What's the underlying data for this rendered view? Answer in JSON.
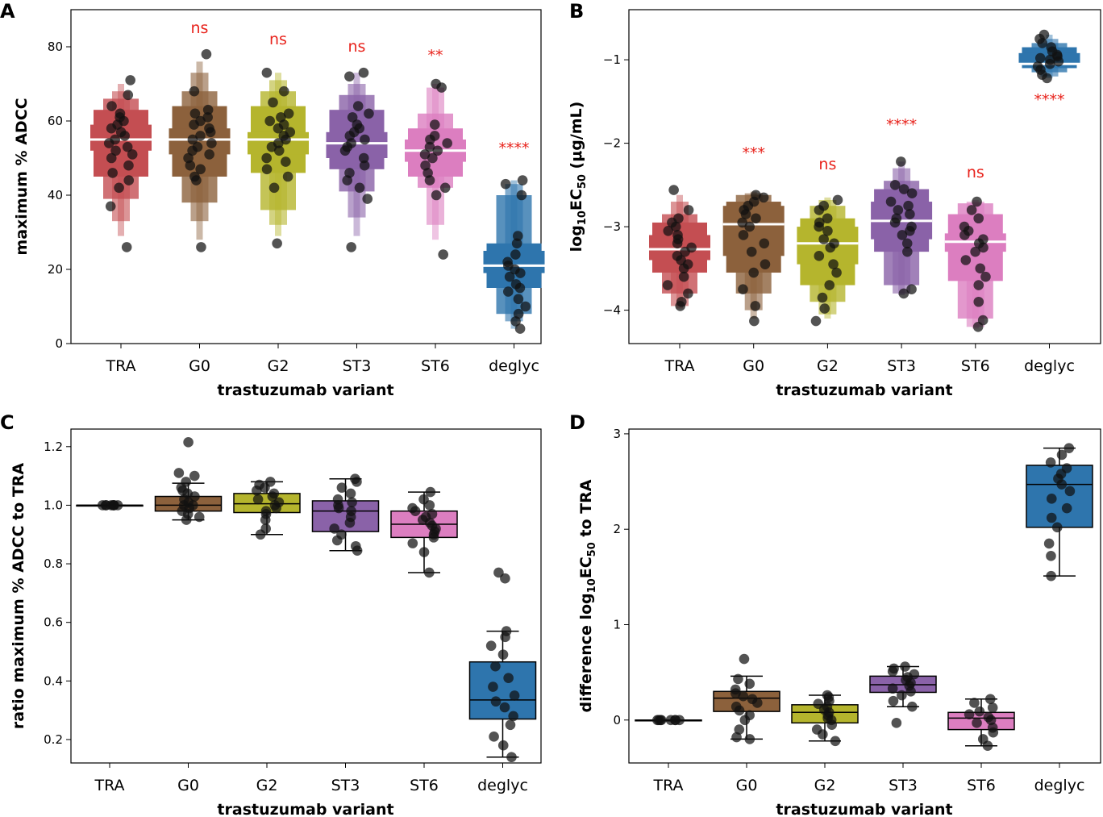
{
  "chart_data": [
    {
      "panel": "A",
      "type": "boxen",
      "xlabel": "trastuzumab variant",
      "ylabel": "maximum % ADCC",
      "ylim": [
        0,
        90
      ],
      "yticks": [
        "0",
        "20",
        "40",
        "60",
        "80"
      ],
      "categories": [
        "TRA",
        "G0",
        "G2",
        "ST3",
        "ST6",
        "deglyc"
      ],
      "significance": [
        "",
        "ns",
        "ns",
        "ns",
        "**",
        "****"
      ],
      "colors": [
        "#c44e52",
        "#8c613c",
        "#b5b52d",
        "#8a62a8",
        "#dc7ec0",
        "#2e75ad"
      ],
      "series": [
        {
          "name": "TRA",
          "median": 55,
          "q1": 52,
          "q3": 59,
          "e1": [
            45,
            63
          ],
          "e2": [
            39,
            66
          ],
          "e3": [
            33,
            68
          ],
          "e4": [
            29,
            70
          ],
          "points": [
            26,
            37,
            42,
            44,
            46,
            48,
            50,
            51,
            52,
            53,
            54,
            55,
            56,
            57,
            58,
            59,
            60,
            61,
            62,
            64,
            67,
            71
          ]
        },
        {
          "name": "G0",
          "median": 55,
          "q1": 51,
          "q3": 58,
          "e1": [
            45,
            64
          ],
          "e2": [
            38,
            68
          ],
          "e3": [
            33,
            73
          ],
          "e4": [
            28,
            76
          ],
          "points": [
            26,
            44,
            45,
            47,
            48,
            50,
            51,
            52,
            53,
            54,
            55,
            56,
            57,
            58,
            59,
            60,
            61,
            62,
            63,
            68,
            78
          ]
        },
        {
          "name": "G2",
          "median": 55,
          "q1": 51,
          "q3": 57,
          "e1": [
            46,
            64
          ],
          "e2": [
            36,
            68
          ],
          "e3": [
            32,
            71
          ],
          "e4": [
            29,
            73
          ],
          "points": [
            27,
            42,
            45,
            47,
            49,
            50,
            52,
            53,
            54,
            55,
            56,
            57,
            58,
            59,
            60,
            61,
            62,
            65,
            68,
            73
          ]
        },
        {
          "name": "ST3",
          "median": 54,
          "q1": 50,
          "q3": 57,
          "e1": [
            47,
            63
          ],
          "e2": [
            41,
            67
          ],
          "e3": [
            34,
            70
          ],
          "e4": [
            29,
            73
          ],
          "points": [
            26,
            39,
            42,
            44,
            46,
            48,
            50,
            52,
            53,
            54,
            55,
            56,
            57,
            58,
            59,
            61,
            62,
            64,
            72,
            73
          ]
        },
        {
          "name": "ST6",
          "median": 52,
          "q1": 49,
          "q3": 55,
          "e1": [
            45,
            58
          ],
          "e2": [
            42,
            62
          ],
          "e3": [
            32,
            69
          ],
          "e4": [
            28,
            70
          ],
          "points": [
            24,
            40,
            42,
            44,
            46,
            48,
            50,
            51,
            52,
            53,
            54,
            55,
            56,
            59,
            69,
            70
          ]
        },
        {
          "name": "deglyc",
          "median": 21,
          "q1": 19,
          "q3": 25,
          "e1": [
            15,
            27
          ],
          "e2": [
            8,
            40
          ],
          "e3": [
            6,
            43
          ],
          "e4": [
            4,
            44
          ],
          "points": [
            4,
            6,
            8,
            10,
            12,
            14,
            15,
            16,
            18,
            19,
            20,
            21,
            22,
            24,
            27,
            29,
            40,
            43,
            44
          ]
        }
      ]
    },
    {
      "panel": "B",
      "type": "boxen",
      "xlabel": "trastuzumab variant",
      "ylabel_main": "log",
      "ylabel_sub": "10",
      "ylabel_mid": "EC",
      "ylabel_sub2": "50",
      "ylabel_tail": " (μg/mL)",
      "ylim": [
        -4.4,
        -0.4
      ],
      "yticks": [
        "−4",
        "−3",
        "−2",
        "−1"
      ],
      "categories": [
        "TRA",
        "G0",
        "G2",
        "ST3",
        "ST6",
        "deglyc"
      ],
      "significance": [
        "",
        "***",
        "ns",
        "****",
        "ns",
        "****"
      ],
      "colors": [
        "#c44e52",
        "#8c613c",
        "#b5b52d",
        "#8a62a8",
        "#dc7ec0",
        "#2e75ad"
      ],
      "series": [
        {
          "name": "TRA",
          "median": -3.27,
          "q1": -3.4,
          "q3": -3.1,
          "e1": [
            -3.55,
            -2.95
          ],
          "e2": [
            -3.8,
            -2.85
          ],
          "e3": [
            -3.95,
            -2.7
          ],
          "e4": [
            -3.98,
            -2.62
          ],
          "points": [
            -3.95,
            -3.9,
            -3.8,
            -3.7,
            -3.6,
            -3.5,
            -3.45,
            -3.4,
            -3.35,
            -3.3,
            -3.25,
            -3.2,
            -3.15,
            -3.1,
            -3.05,
            -3.0,
            -2.95,
            -2.9,
            -2.8,
            -2.56
          ]
        },
        {
          "name": "G0",
          "median": -2.97,
          "q1": -3.35,
          "q3": -2.75,
          "e1": [
            -3.55,
            -2.7
          ],
          "e2": [
            -3.8,
            -2.62
          ],
          "e3": [
            -4.0,
            -2.6
          ],
          "e4": [
            -4.1,
            -2.58
          ],
          "points": [
            -4.13,
            -3.95,
            -3.75,
            -3.55,
            -3.45,
            -3.3,
            -3.2,
            -3.1,
            -3.0,
            -2.95,
            -2.9,
            -2.85,
            -2.8,
            -2.75,
            -2.7,
            -2.65,
            -2.62
          ]
        },
        {
          "name": "G2",
          "median": -3.2,
          "q1": -3.45,
          "q3": -3.0,
          "e1": [
            -3.7,
            -2.9
          ],
          "e2": [
            -3.9,
            -2.75
          ],
          "e3": [
            -4.05,
            -2.68
          ],
          "e4": [
            -4.1,
            -2.65
          ],
          "points": [
            -4.13,
            -3.98,
            -3.85,
            -3.7,
            -3.55,
            -3.45,
            -3.35,
            -3.25,
            -3.2,
            -3.15,
            -3.05,
            -3.0,
            -2.95,
            -2.9,
            -2.8,
            -2.75,
            -2.68
          ]
        },
        {
          "name": "ST3",
          "median": -2.93,
          "q1": -3.15,
          "q3": -2.7,
          "e1": [
            -3.3,
            -2.55
          ],
          "e2": [
            -3.7,
            -2.45
          ],
          "e3": [
            -3.8,
            -2.3
          ],
          "e4": [
            -3.82,
            -2.22
          ],
          "points": [
            -3.8,
            -3.75,
            -3.3,
            -3.2,
            -3.1,
            -3.05,
            -3.0,
            -2.95,
            -2.9,
            -2.85,
            -2.8,
            -2.75,
            -2.7,
            -2.6,
            -2.55,
            -2.5,
            -2.22
          ]
        },
        {
          "name": "ST6",
          "median": -3.18,
          "q1": -3.3,
          "q3": -3.08,
          "e1": [
            -3.65,
            -2.85
          ],
          "e2": [
            -4.1,
            -2.72
          ],
          "e3": [
            -4.2,
            -2.7
          ],
          "e4": [
            -4.22,
            -2.68
          ],
          "points": [
            -4.2,
            -4.12,
            -3.9,
            -3.7,
            -3.6,
            -3.5,
            -3.4,
            -3.3,
            -3.25,
            -3.2,
            -3.15,
            -3.1,
            -3.05,
            -3.0,
            -2.9,
            -2.8,
            -2.7
          ]
        },
        {
          "name": "deglyc",
          "median": -1.05,
          "q1": -1.06,
          "q3": -0.92,
          "e1": [
            -1.1,
            -0.85
          ],
          "e2": [
            -1.15,
            -0.8
          ],
          "e3": [
            -1.2,
            -0.75
          ],
          "e4": [
            -1.22,
            -0.7
          ],
          "points": [
            -1.22,
            -1.18,
            -1.12,
            -1.08,
            -1.05,
            -1.02,
            -1.0,
            -0.98,
            -0.96,
            -0.94,
            -0.9,
            -0.85,
            -0.8,
            -0.75,
            -0.7
          ]
        }
      ]
    },
    {
      "panel": "C",
      "type": "box",
      "xlabel": "trastuzumab variant",
      "ylabel": "ratio maximum % ADCC to TRA",
      "ylim": [
        0.12,
        1.26
      ],
      "yticks": [
        "0.2",
        "0.4",
        "0.6",
        "0.8",
        "1.0",
        "1.2"
      ],
      "categories": [
        "TRA",
        "G0",
        "G2",
        "ST3",
        "ST6",
        "deglyc"
      ],
      "colors": [
        "#c44e52",
        "#8c613c",
        "#b5b52d",
        "#8a62a8",
        "#dc7ec0",
        "#2e75ad"
      ],
      "series": [
        {
          "name": "TRA",
          "min": 1.0,
          "q1": 1.0,
          "median": 1.0,
          "q3": 1.0,
          "max": 1.0,
          "points": [
            1.0,
            1.0,
            1.0,
            1.0,
            1.0,
            1.0,
            1.0,
            1.0
          ]
        },
        {
          "name": "G0",
          "min": 0.95,
          "q1": 0.98,
          "median": 1.0,
          "q3": 1.03,
          "max": 1.075,
          "points": [
            0.95,
            0.96,
            0.97,
            0.98,
            0.99,
            1.0,
            1.0,
            1.01,
            1.02,
            1.03,
            1.04,
            1.05,
            1.06,
            1.08,
            1.1,
            1.11,
            1.215
          ]
        },
        {
          "name": "G2",
          "min": 0.9,
          "q1": 0.975,
          "median": 1.005,
          "q3": 1.04,
          "max": 1.08,
          "points": [
            0.9,
            0.92,
            0.95,
            0.97,
            0.98,
            0.99,
            1.0,
            1.01,
            1.02,
            1.03,
            1.04,
            1.05,
            1.06,
            1.07,
            1.08
          ]
        },
        {
          "name": "ST3",
          "min": 0.845,
          "q1": 0.91,
          "median": 0.98,
          "q3": 1.015,
          "max": 1.09,
          "points": [
            0.845,
            0.86,
            0.88,
            0.9,
            0.92,
            0.94,
            0.96,
            0.98,
            0.99,
            1.0,
            1.01,
            1.02,
            1.04,
            1.06,
            1.08,
            1.09
          ]
        },
        {
          "name": "ST6",
          "min": 0.77,
          "q1": 0.89,
          "median": 0.935,
          "q3": 0.98,
          "max": 1.045,
          "points": [
            0.77,
            0.84,
            0.87,
            0.89,
            0.9,
            0.91,
            0.92,
            0.93,
            0.94,
            0.95,
            0.96,
            0.97,
            0.98,
            0.99,
            1.0,
            1.02,
            1.045
          ]
        },
        {
          "name": "deglyc",
          "min": 0.14,
          "q1": 0.27,
          "median": 0.335,
          "q3": 0.465,
          "max": 0.57,
          "points": [
            0.14,
            0.18,
            0.21,
            0.25,
            0.28,
            0.31,
            0.33,
            0.35,
            0.38,
            0.41,
            0.45,
            0.49,
            0.52,
            0.55,
            0.57,
            0.75,
            0.77
          ]
        }
      ]
    },
    {
      "panel": "D",
      "type": "box",
      "xlabel": "trastuzumab variant",
      "ylabel_main": "difference log",
      "ylabel_sub": "10",
      "ylabel_mid": "EC",
      "ylabel_sub2": "50",
      "ylabel_tail": " to TRA",
      "ylim": [
        -0.45,
        3.05
      ],
      "yticks": [
        "0",
        "1",
        "2",
        "3"
      ],
      "categories": [
        "TRA",
        "G0",
        "G2",
        "ST3",
        "ST6",
        "deglyc"
      ],
      "colors": [
        "#c44e52",
        "#8c613c",
        "#b5b52d",
        "#8a62a8",
        "#dc7ec0",
        "#2e75ad"
      ],
      "series": [
        {
          "name": "TRA",
          "min": 0.0,
          "q1": 0.0,
          "median": 0.0,
          "q3": 0.0,
          "max": 0.0,
          "points": [
            0.0,
            0.0,
            0.0,
            0.0,
            0.0,
            0.0,
            0.0,
            0.0
          ]
        },
        {
          "name": "G0",
          "min": -0.2,
          "q1": 0.09,
          "median": 0.23,
          "q3": 0.3,
          "max": 0.46,
          "points": [
            -0.2,
            -0.18,
            -0.1,
            0.0,
            0.05,
            0.1,
            0.14,
            0.18,
            0.22,
            0.25,
            0.28,
            0.32,
            0.38,
            0.43,
            0.64
          ]
        },
        {
          "name": "G2",
          "min": -0.22,
          "q1": -0.03,
          "median": 0.08,
          "q3": 0.16,
          "max": 0.26,
          "points": [
            -0.22,
            -0.15,
            -0.1,
            -0.05,
            0.0,
            0.02,
            0.05,
            0.08,
            0.11,
            0.14,
            0.17,
            0.2,
            0.24,
            0.26
          ]
        },
        {
          "name": "ST3",
          "min": 0.14,
          "q1": 0.29,
          "median": 0.37,
          "q3": 0.46,
          "max": 0.56,
          "points": [
            -0.03,
            0.14,
            0.2,
            0.26,
            0.3,
            0.33,
            0.36,
            0.39,
            0.42,
            0.45,
            0.48,
            0.51,
            0.54,
            0.56
          ]
        },
        {
          "name": "ST6",
          "min": -0.27,
          "q1": -0.1,
          "median": 0.02,
          "q3": 0.08,
          "max": 0.22,
          "points": [
            -0.27,
            -0.2,
            -0.13,
            -0.08,
            -0.03,
            0.0,
            0.03,
            0.06,
            0.09,
            0.13,
            0.18,
            0.22
          ]
        },
        {
          "name": "deglyc",
          "min": 1.51,
          "q1": 2.02,
          "median": 2.47,
          "q3": 2.67,
          "max": 2.85,
          "points": [
            1.51,
            1.72,
            1.85,
            2.02,
            2.12,
            2.22,
            2.32,
            2.4,
            2.47,
            2.53,
            2.58,
            2.64,
            2.7,
            2.78,
            2.85
          ]
        }
      ]
    }
  ]
}
